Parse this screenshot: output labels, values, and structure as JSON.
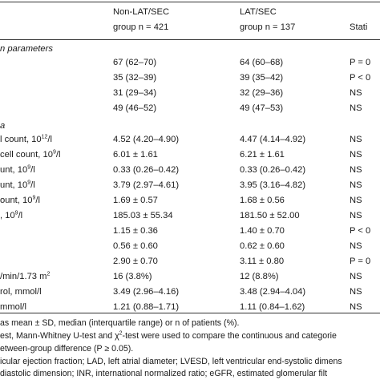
{
  "header": {
    "col1_line1": "Non-LAT/SEC",
    "col1_line2": "group n = 421",
    "col2_line1": "LAT/SEC",
    "col2_line2": "group n = 137",
    "col3": "Stati"
  },
  "section1_title": "n parameters",
  "section2_title": "a",
  "rows": [
    {
      "label": "",
      "sup": "",
      "label_tail": "",
      "col1": "67 (62–70)",
      "col2": "64 (60–68)",
      "col3": "P = 0"
    },
    {
      "label": "",
      "sup": "",
      "label_tail": "",
      "col1": "35 (32–39)",
      "col2": "39 (35–42)",
      "col3": "P < 0"
    },
    {
      "label": "",
      "sup": "",
      "label_tail": "",
      "col1": "31 (29–34)",
      "col2": "32 (29–36)",
      "col3": "NS"
    },
    {
      "label": "",
      "sup": "",
      "label_tail": "",
      "col1": "49 (46–52)",
      "col2": "49 (47–53)",
      "col3": "NS"
    },
    {
      "label": "l count, 10",
      "sup": "12",
      "label_tail": "/l",
      "col1": "4.52 (4.20–4.90)",
      "col2": "4.47 (4.14–4.92)",
      "col3": "NS"
    },
    {
      "label": "cell count, 10",
      "sup": "9",
      "label_tail": "/l",
      "col1": "6.01 ± 1.61",
      "col2": "6.21 ± 1.61",
      "col3": "NS"
    },
    {
      "label": "unt, 10",
      "sup": "9",
      "label_tail": "/l",
      "col1": "0.33 (0.26–0.42)",
      "col2": "0.33 (0.26–0.42)",
      "col3": "NS"
    },
    {
      "label": "unt, 10",
      "sup": "9",
      "label_tail": "/l",
      "col1": "3.79 (2.97–4.61)",
      "col2": "3.95 (3.16–4.82)",
      "col3": "NS"
    },
    {
      "label": "ount, 10",
      "sup": "9",
      "label_tail": "/l",
      "col1": "1.69 ± 0.57",
      "col2": "1.68 ± 0.56",
      "col3": "NS"
    },
    {
      "label": ", 10",
      "sup": "9",
      "label_tail": "/l",
      "col1": "185.03 ± 55.34",
      "col2": "181.50 ± 52.00",
      "col3": "NS"
    },
    {
      "label": "",
      "sup": "",
      "label_tail": "",
      "col1": "1.15 ± 0.36",
      "col2": "1.40 ± 0.70",
      "col3": "P < 0"
    },
    {
      "label": "",
      "sup": "",
      "label_tail": "",
      "col1": "0.56 ± 0.60",
      "col2": "0.62 ± 0.60",
      "col3": "NS"
    },
    {
      "label": "",
      "sup": "",
      "label_tail": "",
      "col1": "2.90 ± 0.70",
      "col2": "3.11 ± 0.80",
      "col3": "P = 0"
    },
    {
      "label": "/min/1.73 m",
      "sup": "2",
      "label_tail": "",
      "col1": "16 (3.8%)",
      "col2": "12 (8.8%)",
      "col3": "NS"
    },
    {
      "label": "rol, mmol/l",
      "sup": "",
      "label_tail": "",
      "col1": "3.49 (2.96–4.16)",
      "col2": "3.48 (2.94–4.04)",
      "col3": "NS"
    },
    {
      "label": "mmol/l",
      "sup": "",
      "label_tail": "",
      "col1": "1.21 (0.88–1.71)",
      "col2": "1.11 (0.84–1.62)",
      "col3": "NS"
    }
  ],
  "footnotes": {
    "line1": "as mean ± SD, median (interquartile range) or n of patients (%).",
    "line2_a": "est, Mann-Whitney U-test and χ",
    "line2_sup": "2",
    "line2_b": "-test were used to compare the continuous and categorie",
    "line3": "etween-group difference (P ≥ 0.05).",
    "line4": "icular ejection fraction; LAD, left atrial diameter; LVESD, left ventricular end-systolic dimens",
    "line5": "diastolic dimension; INR, international normalized ratio; eGFR, estimated glomerular filt"
  }
}
